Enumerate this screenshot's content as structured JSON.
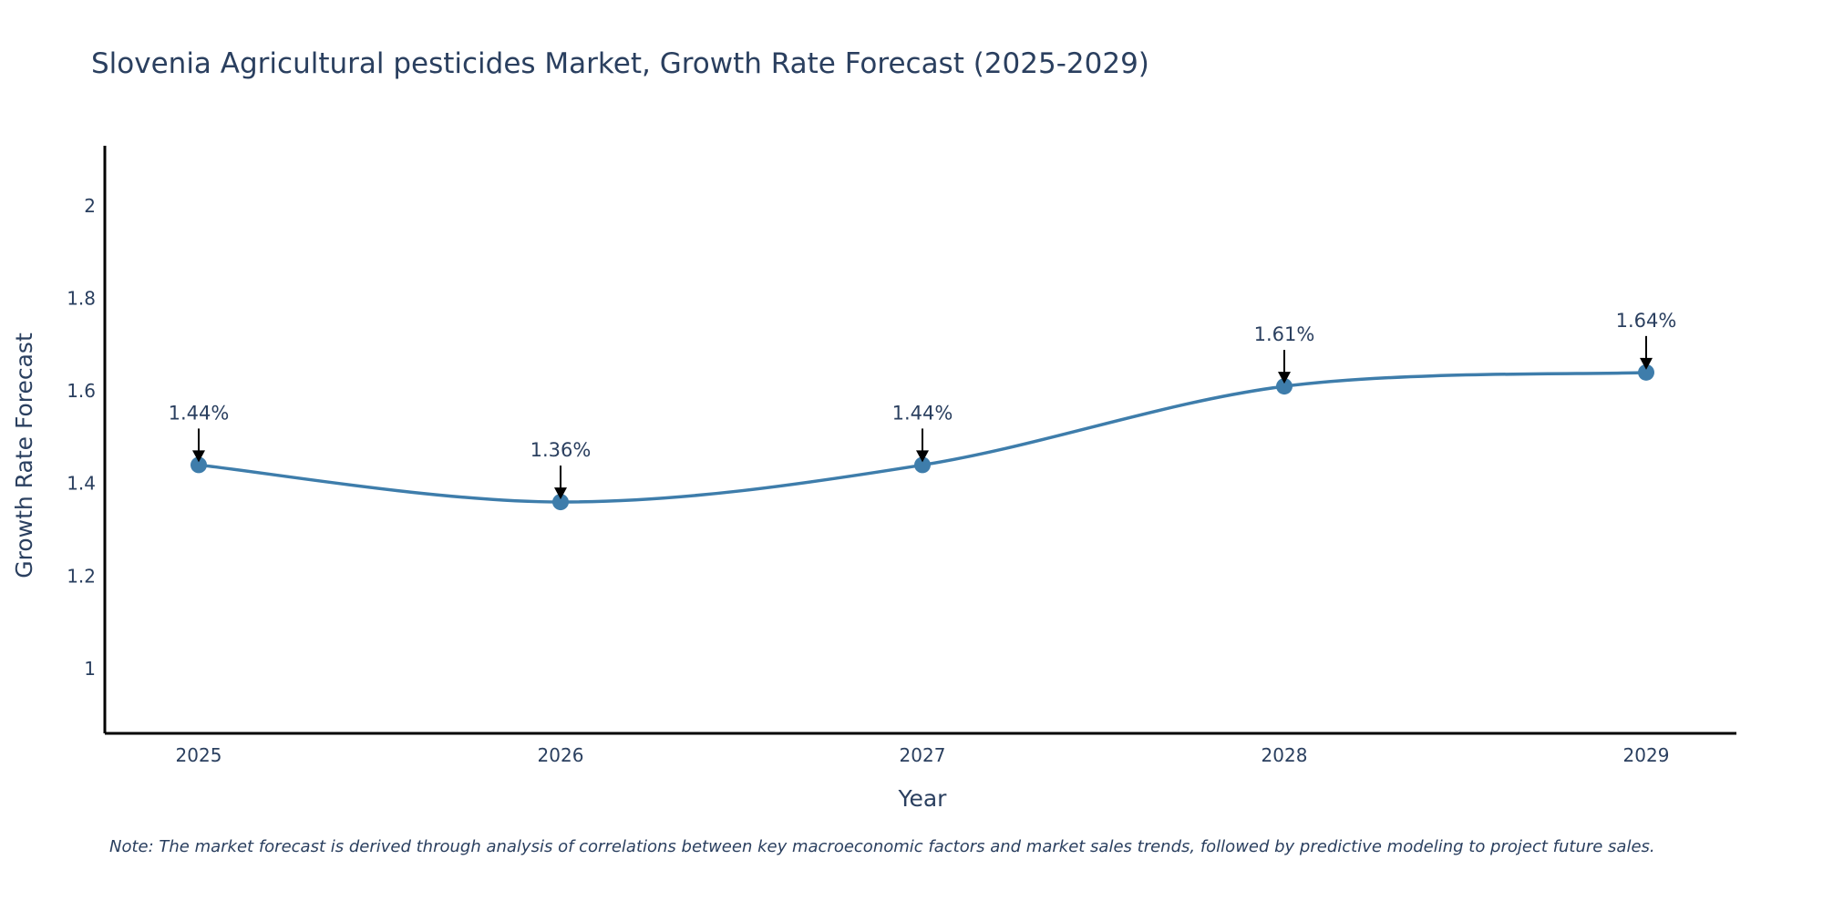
{
  "chart_data": {
    "type": "line",
    "title": "Slovenia Agricultural pesticides Market, Growth Rate Forecast (2025-2029)",
    "xlabel": "Year",
    "ylabel": "Growth Rate Forecast",
    "categories": [
      "2025",
      "2026",
      "2027",
      "2028",
      "2029"
    ],
    "values": [
      1.44,
      1.36,
      1.44,
      1.61,
      1.64
    ],
    "data_labels": [
      "1.44%",
      "1.36%",
      "1.44%",
      "1.61%",
      "1.64%"
    ],
    "ylim": [
      0.86,
      2.13
    ],
    "yticks": [
      1,
      1.2,
      1.4,
      1.6,
      1.8,
      2
    ],
    "ytick_labels": [
      "1",
      "1.2",
      "1.4",
      "1.6",
      "1.8",
      "2"
    ],
    "grid": false,
    "line_color": "#3e7dab",
    "marker_color": "#3e7dab"
  },
  "note": "Note: The market forecast is derived through analysis of correlations between key macroeconomic factors and market sales trends, followed by predictive modeling to project future sales."
}
